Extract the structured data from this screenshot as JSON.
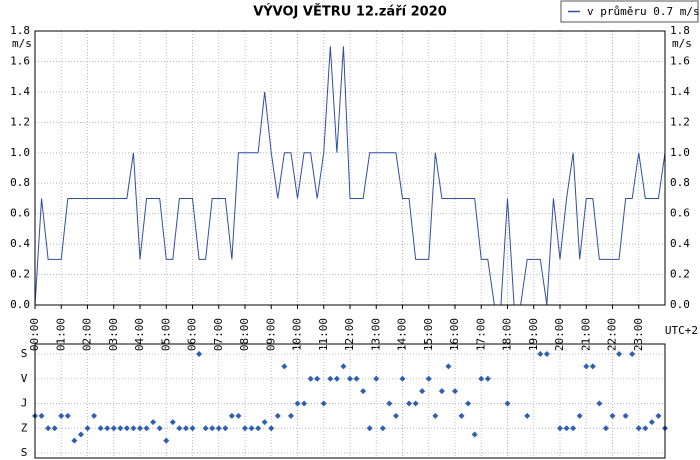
{
  "chart_data": [
    {
      "type": "line",
      "title": "VÝVOJ VĚTRU  12.září 2020",
      "ylabel": "m/s",
      "xlabel": "UTC+2",
      "xlim": [
        0,
        24
      ],
      "ylim": [
        0,
        1.8
      ],
      "yticks": [
        {
          "value": 0,
          "label": "0.0"
        },
        0.2,
        0.4,
        0.6,
        0.8,
        {
          "value": 1,
          "label": "1.0"
        },
        1.2,
        1.4,
        1.6,
        1.8
      ],
      "xticks": [
        {
          "value": 0,
          "label": "00:00"
        },
        {
          "value": 1,
          "label": "01:00"
        },
        {
          "value": 2,
          "label": "02:00"
        },
        {
          "value": 3,
          "label": "03:00"
        },
        {
          "value": 4,
          "label": "04:00"
        },
        {
          "value": 5,
          "label": "05:00"
        },
        {
          "value": 6,
          "label": "06:00"
        },
        {
          "value": 7,
          "label": "07:00"
        },
        {
          "value": 8,
          "label": "08:00"
        },
        {
          "value": 9,
          "label": "09:00"
        },
        {
          "value": 10,
          "label": "10:00"
        },
        {
          "value": 11,
          "label": "11:00"
        },
        {
          "value": 12,
          "label": "12:00"
        },
        {
          "value": 13,
          "label": "13:00"
        },
        {
          "value": 14,
          "label": "14:00"
        },
        {
          "value": 15,
          "label": "15:00"
        },
        {
          "value": 16,
          "label": "16:00"
        },
        {
          "value": 17,
          "label": "17:00"
        },
        {
          "value": 18,
          "label": "18:00"
        },
        {
          "value": 19,
          "label": "19:00"
        },
        {
          "value": 20,
          "label": "20:00"
        },
        {
          "value": 21,
          "label": "21:00"
        },
        {
          "value": 22,
          "label": "22:00"
        },
        {
          "value": 23,
          "label": "23:00"
        }
      ],
      "grid": true,
      "x": [
        0,
        0.25,
        0.5,
        0.75,
        1,
        1.25,
        1.5,
        1.75,
        2,
        2.25,
        2.5,
        2.75,
        3,
        3.25,
        3.5,
        3.75,
        4,
        4.25,
        4.5,
        4.75,
        5,
        5.25,
        5.5,
        5.75,
        6,
        6.25,
        6.5,
        6.75,
        7,
        7.25,
        7.5,
        7.75,
        8,
        8.25,
        8.5,
        8.75,
        9,
        9.25,
        9.5,
        9.75,
        10,
        10.25,
        10.5,
        10.75,
        11,
        11.25,
        11.5,
        11.75,
        12,
        12.25,
        12.5,
        12.75,
        13,
        13.25,
        13.5,
        13.75,
        14,
        14.25,
        14.5,
        14.75,
        15,
        15.25,
        15.5,
        15.75,
        16,
        16.25,
        16.5,
        16.75,
        17,
        17.25,
        17.5,
        17.75,
        18,
        18.25,
        18.5,
        18.75,
        19,
        19.25,
        19.5,
        19.75,
        20,
        20.25,
        20.5,
        20.75,
        21,
        21.25,
        21.5,
        21.75,
        22,
        22.25,
        22.5,
        22.75,
        23,
        23.25,
        23.5,
        23.75,
        24
      ],
      "series": [
        {
          "name": "v průměru 0.7 m/s",
          "color": "#2f4f9f",
          "values": [
            0,
            0.7,
            0.3,
            0.3,
            0.3,
            0.7,
            0.7,
            0.7,
            0.7,
            0.7,
            0.7,
            0.7,
            0.7,
            0.7,
            0.7,
            1,
            0.3,
            0.7,
            0.7,
            0.7,
            0.3,
            0.3,
            0.7,
            0.7,
            0.7,
            0.3,
            0.3,
            0.7,
            0.7,
            0.7,
            0.3,
            1,
            1,
            1,
            1,
            1.4,
            1,
            0.7,
            1,
            1,
            0.7,
            1,
            1,
            0.7,
            1,
            1.7,
            1,
            1.7,
            0.7,
            0.7,
            0.7,
            1,
            1,
            1,
            1,
            1,
            0.7,
            0.7,
            0.3,
            0.3,
            0.3,
            1,
            0.7,
            0.7,
            0.7,
            0.7,
            0.7,
            0.7,
            0.3,
            0.3,
            0,
            0,
            0.7,
            0,
            0,
            0.3,
            0.3,
            0.3,
            0,
            0.7,
            0.3,
            0.7,
            1,
            0.3,
            0.7,
            0.7,
            0.3,
            0.3,
            0.3,
            0.3,
            0.7,
            0.7,
            1,
            0.7,
            0.7,
            0.7,
            1
          ]
        }
      ]
    },
    {
      "type": "scatter",
      "xlim": [
        0,
        24
      ],
      "ylim": [
        0,
        4
      ],
      "yticks": [
        {
          "value": 0,
          "label": "S"
        },
        {
          "value": 1,
          "label": "Z"
        },
        {
          "value": 2,
          "label": "J"
        },
        {
          "value": 3,
          "label": "V"
        },
        {
          "value": 4,
          "label": "S"
        }
      ],
      "grid": true,
      "color": "#2f5fb0",
      "x": [
        0,
        0.25,
        0.5,
        0.75,
        1,
        1.25,
        1.5,
        1.75,
        2,
        2.25,
        2.5,
        2.75,
        3,
        3.25,
        3.5,
        3.75,
        4,
        4.25,
        4.5,
        4.75,
        5,
        5.25,
        5.5,
        5.75,
        6,
        6.25,
        6.5,
        6.75,
        7,
        7.25,
        7.5,
        7.75,
        8,
        8.25,
        8.5,
        8.75,
        9,
        9.25,
        9.5,
        9.75,
        10,
        10.25,
        10.5,
        10.75,
        11,
        11.25,
        11.5,
        11.75,
        12,
        12.25,
        12.5,
        12.75,
        13,
        13.25,
        13.5,
        13.75,
        14,
        14.25,
        14.5,
        14.75,
        15,
        15.25,
        15.5,
        15.75,
        16,
        16.25,
        16.5,
        16.75,
        17,
        17.25,
        17.5,
        17.75,
        18,
        18.25,
        18.5,
        18.75,
        19,
        19.25,
        19.5,
        19.75,
        20,
        20.25,
        20.5,
        20.75,
        21,
        21.25,
        21.5,
        21.75,
        22,
        22.25,
        22.5,
        22.75,
        23,
        23.25,
        23.5,
        23.75,
        24
      ],
      "values": [
        1.5,
        1.5,
        1,
        1,
        1.5,
        1.5,
        0.5,
        0.75,
        1,
        1.5,
        1,
        1,
        1,
        1,
        1,
        1,
        1,
        1,
        1.25,
        1,
        0.5,
        1.25,
        1,
        1,
        1,
        4,
        1,
        1,
        1,
        1,
        1.5,
        1.5,
        1,
        1,
        1,
        1.25,
        1,
        1.5,
        3.5,
        1.5,
        2,
        2,
        3,
        3,
        2,
        3,
        3,
        3.5,
        3,
        3,
        2.5,
        1,
        3,
        1,
        2,
        1.5,
        3,
        2,
        2,
        2.5,
        3,
        1.5,
        2.5,
        3.5,
        2.5,
        1.5,
        2,
        0.75,
        3,
        3,
        null,
        null,
        2,
        null,
        null,
        1.5,
        null,
        4,
        4,
        null,
        1,
        1,
        1,
        1.5,
        3.5,
        3.5,
        2,
        1,
        1.5,
        4,
        1.5,
        4,
        1,
        1,
        1.25,
        1.5,
        1
      ]
    }
  ]
}
